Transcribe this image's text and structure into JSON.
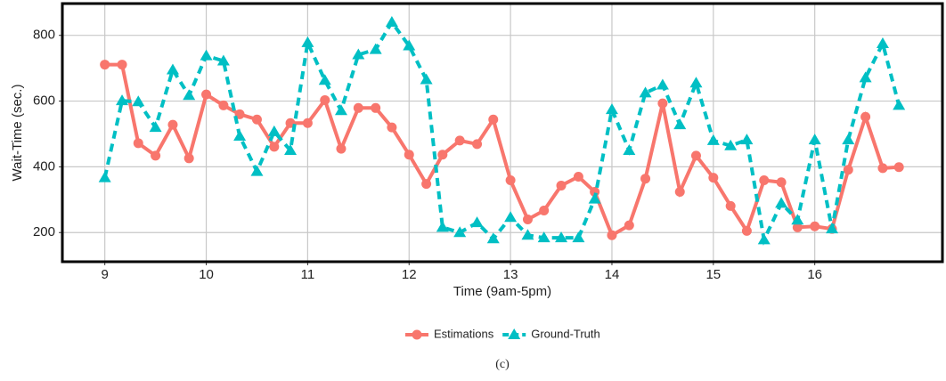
{
  "chart_data": {
    "type": "line",
    "x_label": "Time (9am-5pm)",
    "y_label": "Wait-Time (sec.)",
    "caption": "(c)",
    "x": [
      9,
      9.17,
      9.33,
      9.5,
      9.67,
      9.83,
      10,
      10.17,
      10.33,
      10.5,
      10.67,
      10.83,
      11,
      11.17,
      11.33,
      11.5,
      11.67,
      11.83,
      12,
      12.17,
      12.33,
      12.5,
      12.67,
      12.83,
      13,
      13.17,
      13.33,
      13.5,
      13.67,
      13.83,
      14,
      14.17,
      14.33,
      14.5,
      14.67,
      14.83,
      15,
      15.17,
      15.33,
      15.5,
      15.67,
      15.83,
      16,
      16.17,
      16.33,
      16.5,
      16.67,
      16.83
    ],
    "series": [
      {
        "name": "Estimations",
        "color": "#f8766d",
        "marker": "circle",
        "linestyle": "solid",
        "values": [
          711,
          711,
          472,
          434,
          528,
          426,
          620,
          587,
          560,
          544,
          461,
          533,
          533,
          603,
          455,
          579,
          579,
          520,
          437,
          348,
          437,
          480,
          469,
          544,
          359,
          240,
          267,
          343,
          370,
          324,
          192,
          222,
          364,
          593,
          324,
          434,
          367,
          281,
          205,
          359,
          353,
          216,
          219,
          211,
          391,
          552,
          396,
          399
        ]
      },
      {
        "name": "Ground-Truth",
        "color": "#00bfc4",
        "marker": "triangle",
        "linestyle": "dashed",
        "values": [
          367,
          601,
          598,
          520,
          695,
          617,
          738,
          722,
          493,
          386,
          507,
          450,
          778,
          663,
          571,
          741,
          757,
          840,
          768,
          665,
          216,
          200,
          230,
          181,
          246,
          192,
          184,
          184,
          184,
          302,
          574,
          450,
          625,
          649,
          528,
          655,
          480,
          464,
          482,
          178,
          289,
          238,
          482,
          211,
          482,
          671,
          775,
          587
        ]
      }
    ],
    "xlim": [
      8.59,
      17.25
    ],
    "xticks": [
      9,
      10,
      11,
      12,
      13,
      14,
      15,
      16
    ],
    "ylim": [
      114,
      894
    ],
    "yticks": [
      200,
      400,
      600,
      800
    ],
    "grid": true,
    "legend": "bottom"
  }
}
